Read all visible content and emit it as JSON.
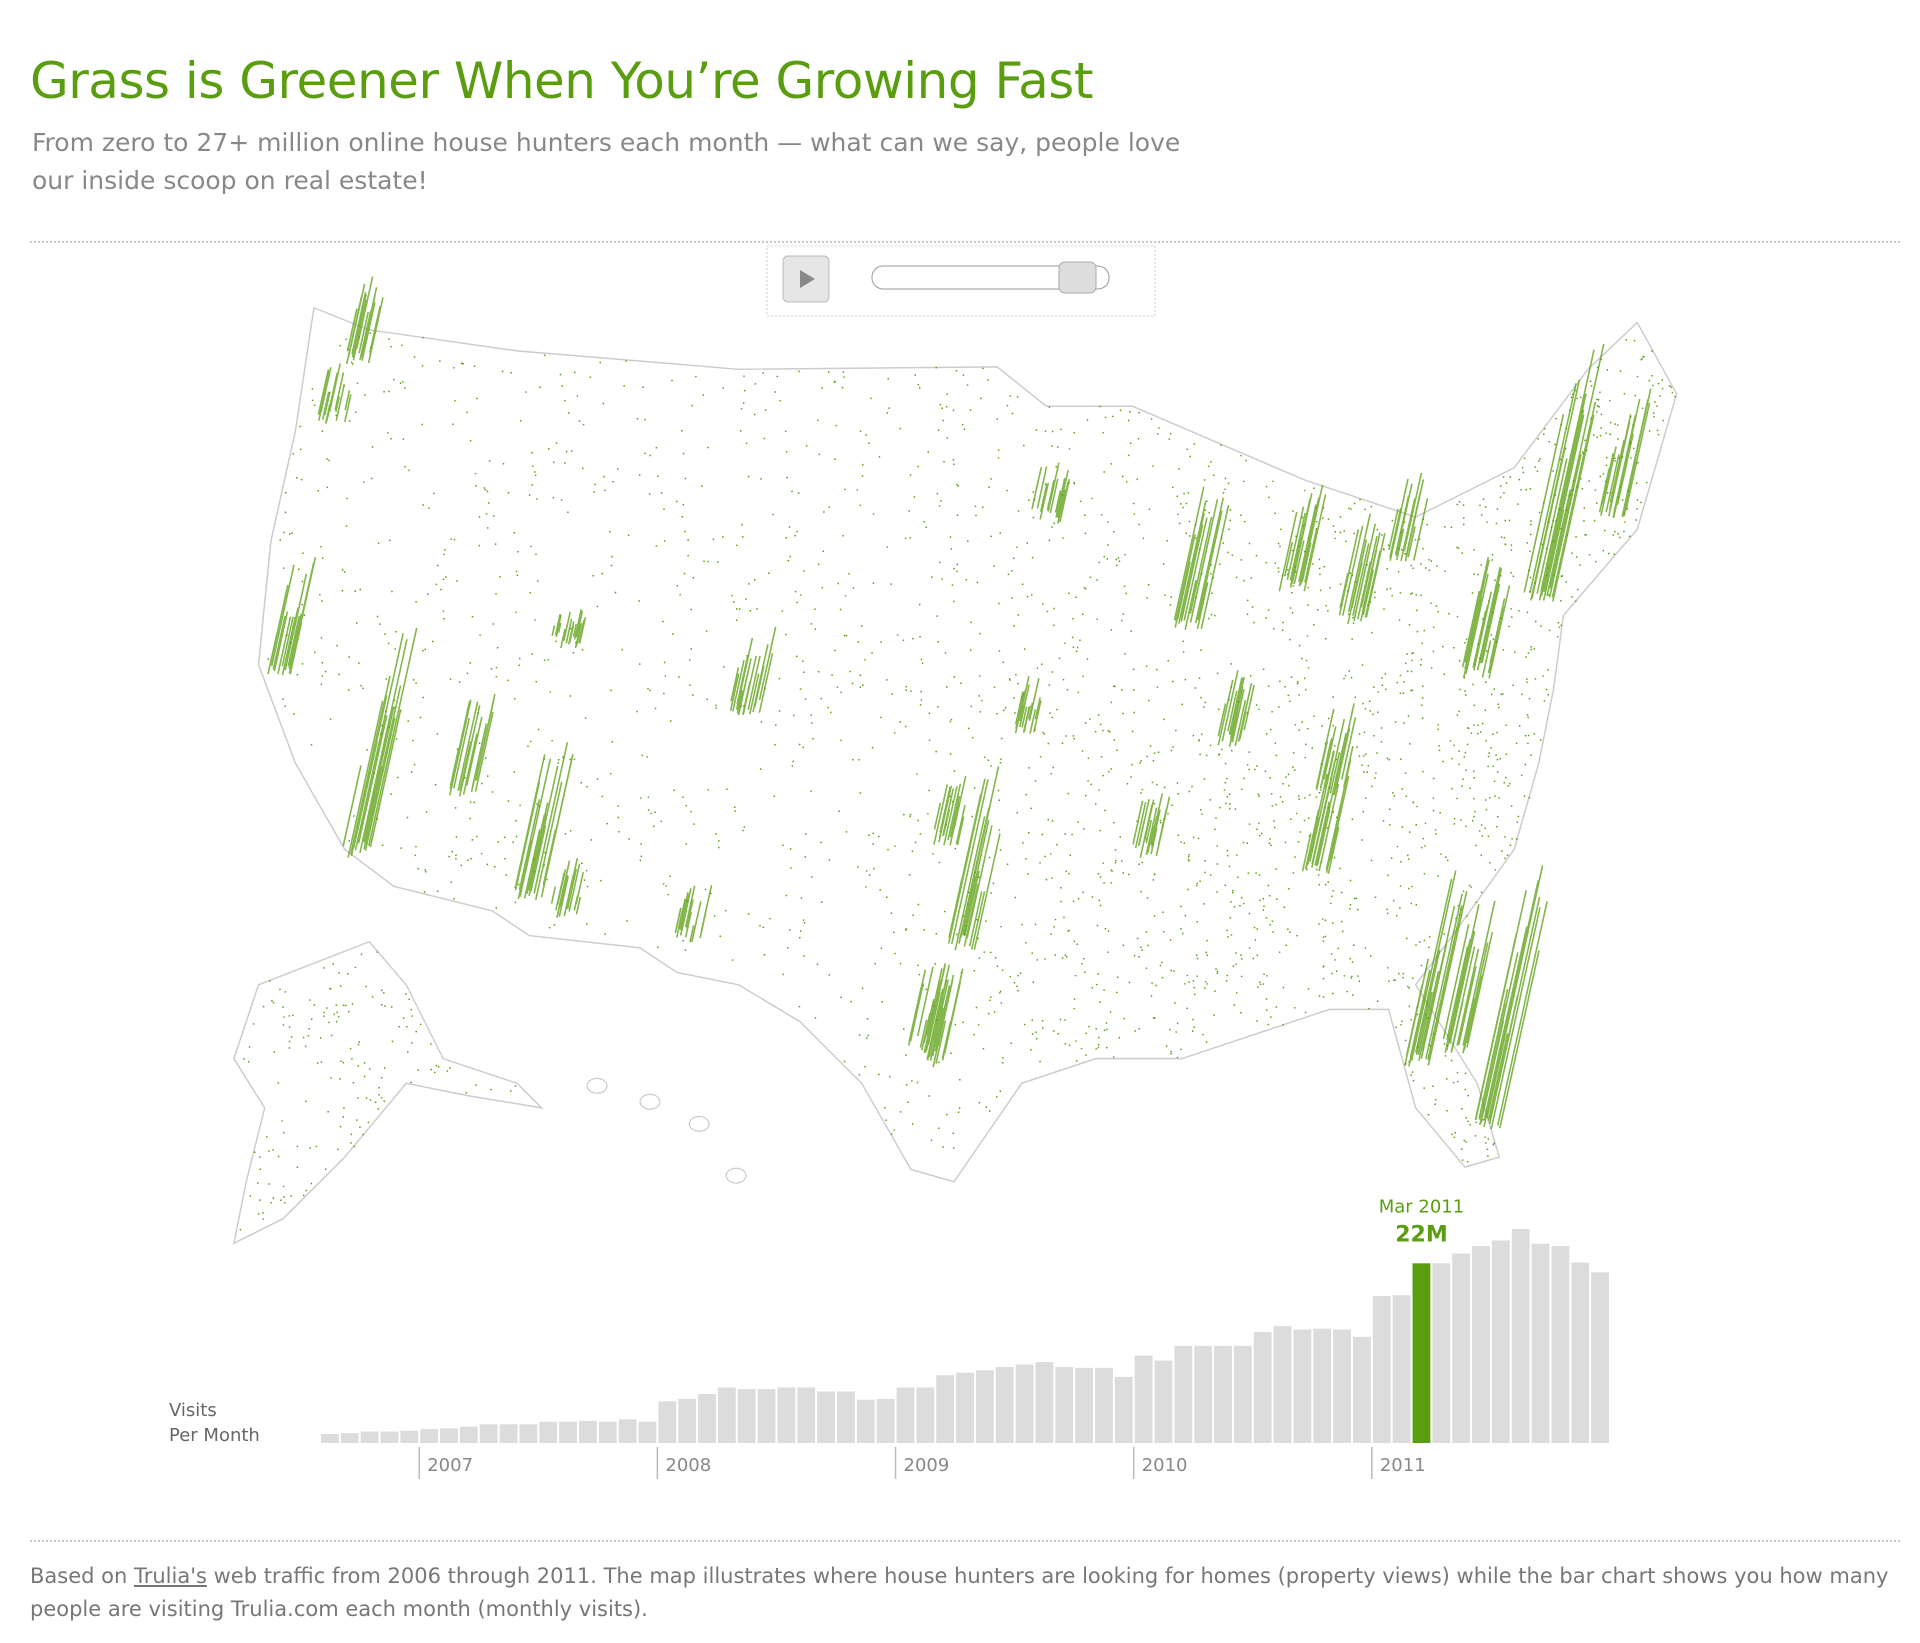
{
  "title": "Grass is Greener When You’re Growing Fast",
  "subtitle": "From zero to 27+ million online house hunters each month — what can we say, people love our inside scoop on real estate!",
  "note_parts": [
    "Based on ",
    "Trulia's",
    " web traffic from 2006 through 2011. The map illustrates where house hunters are looking for homes (property views) while the bar chart shows you how many people are visiting Trulia.com each month (monthly visits)."
  ],
  "chart_data": {
    "type": "bar",
    "ylabel": [
      "Visits",
      "Per Month"
    ],
    "color": "#dcdcdc",
    "highlight_color": "#5a9e0f",
    "categories": [
      null,
      null,
      null,
      null,
      null,
      "2007",
      null,
      null,
      null,
      null,
      null,
      null,
      null,
      null,
      null,
      null,
      null,
      "2008",
      null,
      null,
      null,
      null,
      null,
      null,
      null,
      null,
      null,
      null,
      null,
      "2009",
      null,
      null,
      null,
      null,
      null,
      null,
      null,
      null,
      null,
      null,
      null,
      "2010",
      null,
      null,
      null,
      null,
      null,
      null,
      null,
      null,
      null,
      null,
      null,
      "2011",
      null,
      null,
      null,
      null,
      null,
      null,
      null,
      null,
      null,
      null,
      null
    ],
    "values": [
      1.1,
      1.2,
      1.4,
      1.4,
      1.5,
      1.7,
      1.8,
      2.0,
      2.3,
      2.3,
      2.3,
      2.6,
      2.6,
      2.7,
      2.6,
      2.9,
      2.6,
      5.1,
      5.4,
      6.0,
      6.8,
      6.6,
      6.6,
      6.8,
      6.8,
      6.3,
      6.3,
      5.3,
      5.4,
      6.8,
      6.8,
      8.3,
      8.6,
      8.9,
      9.3,
      9.6,
      9.9,
      9.3,
      9.2,
      9.2,
      8.1,
      10.7,
      10.1,
      11.9,
      11.9,
      11.9,
      11.9,
      13.6,
      14.3,
      13.9,
      14.0,
      13.9,
      13.0,
      18.0,
      18.1,
      22,
      22.0,
      23.2,
      24.1,
      24.8,
      26.2,
      24.4,
      24.1,
      22.1,
      20.9
    ],
    "value_labels": [
      null,
      null,
      null,
      null,
      null,
      null,
      null,
      null,
      null,
      null,
      null,
      null,
      null,
      null,
      null,
      null,
      null,
      null,
      null,
      null,
      null,
      null,
      null,
      null,
      null,
      null,
      null,
      null,
      null,
      null,
      null,
      null,
      null,
      null,
      null,
      null,
      null,
      null,
      null,
      null,
      null,
      null,
      null,
      null,
      null,
      null,
      null,
      null,
      null,
      null,
      null,
      null,
      null,
      null,
      null,
      "22M",
      null,
      null,
      null,
      null,
      null,
      null,
      null,
      null,
      null
    ],
    "bar_labels": [
      null,
      null,
      null,
      null,
      null,
      null,
      null,
      null,
      null,
      null,
      null,
      null,
      null,
      null,
      null,
      null,
      null,
      null,
      null,
      null,
      null,
      null,
      null,
      null,
      null,
      null,
      null,
      null,
      null,
      null,
      null,
      null,
      null,
      null,
      null,
      null,
      null,
      null,
      null,
      null,
      null,
      null,
      null,
      null,
      null,
      null,
      null,
      null,
      null,
      null,
      null,
      null,
      null,
      null,
      null,
      "Mar 2011",
      null,
      null,
      null,
      null,
      null,
      null,
      null,
      null,
      null
    ]
  }
}
